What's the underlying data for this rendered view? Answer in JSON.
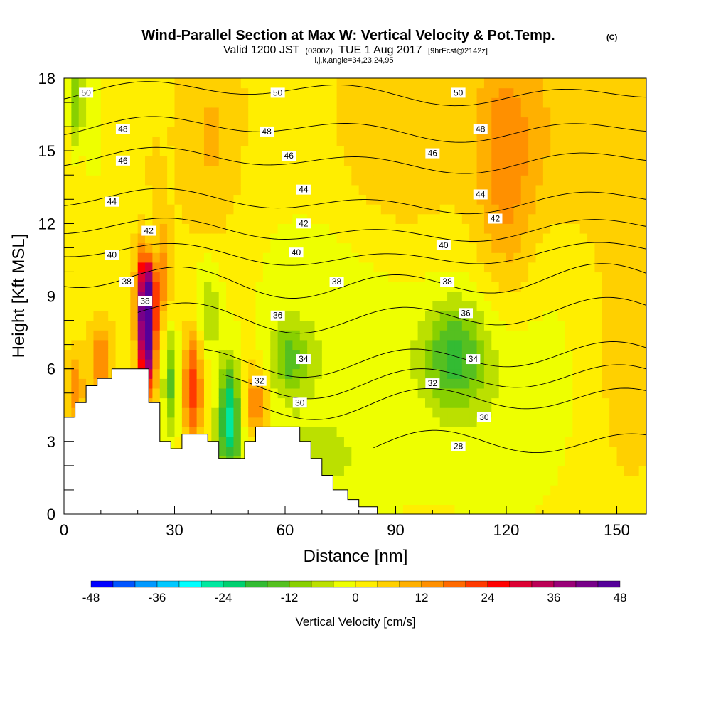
{
  "header": {
    "title": "Wind-Parallel Section at Max W: Vertical Velocity & Pot.Temp.",
    "title_unit": "(C)",
    "valid_prefix": "Valid 1200 JST",
    "valid_utc": "(0300Z)",
    "valid_date": "TUE 1 Aug 2017",
    "forecast": "[9hrFcst@2142z]",
    "params": "i,j,k,angle=34,23,24,95"
  },
  "chart_data": {
    "type": "heatmap",
    "xlabel": "Distance [nm]",
    "ylabel": "Height [Kft MSL]",
    "xlim": [
      0,
      158
    ],
    "ylim": [
      0,
      18
    ],
    "x_ticks": [
      "0",
      "30",
      "60",
      "90",
      "120",
      "150"
    ],
    "x_tick_values": [
      0,
      30,
      60,
      90,
      120,
      150
    ],
    "y_ticks": [
      "0",
      "3",
      "6",
      "9",
      "12",
      "15",
      "18"
    ],
    "y_tick_values": [
      0,
      3,
      6,
      9,
      12,
      15,
      18
    ],
    "terrain": [
      [
        0,
        4.0
      ],
      [
        3,
        4.0
      ],
      [
        3,
        4.6
      ],
      [
        6,
        4.6
      ],
      [
        6,
        5.3
      ],
      [
        9,
        5.3
      ],
      [
        9,
        5.6
      ],
      [
        13,
        5.6
      ],
      [
        13,
        6.0
      ],
      [
        23,
        6.0
      ],
      [
        23,
        4.6
      ],
      [
        26,
        4.6
      ],
      [
        26,
        3.0
      ],
      [
        29,
        3.0
      ],
      [
        29,
        2.7
      ],
      [
        32,
        2.7
      ],
      [
        32,
        3.3
      ],
      [
        39,
        3.3
      ],
      [
        39,
        3.0
      ],
      [
        42,
        3.0
      ],
      [
        42,
        2.3
      ],
      [
        49,
        2.3
      ],
      [
        49,
        3.0
      ],
      [
        52,
        3.0
      ],
      [
        52,
        3.6
      ],
      [
        64,
        3.6
      ],
      [
        64,
        3.0
      ],
      [
        67,
        3.0
      ],
      [
        67,
        2.3
      ],
      [
        70,
        2.3
      ],
      [
        70,
        1.6
      ],
      [
        73,
        1.6
      ],
      [
        73,
        1.0
      ],
      [
        77,
        1.0
      ],
      [
        77,
        0.6
      ],
      [
        80,
        0.6
      ],
      [
        80,
        0.3
      ],
      [
        85,
        0.3
      ],
      [
        85,
        0.0
      ],
      [
        158,
        0.0
      ]
    ],
    "colorbar": {
      "label": "Vertical Velocity [cm/s]",
      "tick_labels": [
        "-48",
        "-36",
        "-24",
        "-12",
        "0",
        "12",
        "24",
        "36",
        "48"
      ],
      "tick_values": [
        -48,
        -36,
        -24,
        -12,
        0,
        12,
        24,
        36,
        48
      ],
      "colors": [
        "#0000ff",
        "#0055ff",
        "#0099ff",
        "#00c8ff",
        "#00ffff",
        "#00e8a0",
        "#00d070",
        "#33bb33",
        "#55c020",
        "#88d000",
        "#bbe000",
        "#eeff00",
        "#ffee00",
        "#ffd000",
        "#ffb000",
        "#ff9000",
        "#ff6a00",
        "#ff3a00",
        "#ff0000",
        "#dd0033",
        "#bb0055",
        "#990077",
        "#770088",
        "#550099"
      ]
    },
    "theta_contours": [
      {
        "value": 28,
        "x_start": 84,
        "label_x": 107,
        "label_y": 2.8
      },
      {
        "value": 30,
        "x_start": 53,
        "label_x": 64,
        "label_y": 4.6
      },
      {
        "value": 32,
        "x_start": 43,
        "label_x": 53,
        "label_y": 5.5
      },
      {
        "value": 34,
        "x_start": 38,
        "label_x": 65,
        "label_y": 6.4
      },
      {
        "value": 36,
        "x_start": 20,
        "label_x": 58,
        "label_y": 8.2
      },
      {
        "value": 38,
        "x_start": 0,
        "label_x": 17,
        "label_y": 9.6
      },
      {
        "value": 40,
        "x_start": 0,
        "label_x": 13,
        "label_y": 10.7
      },
      {
        "value": 42,
        "x_start": 0,
        "label_x": 23,
        "label_y": 11.7
      },
      {
        "value": 44,
        "x_start": 0,
        "label_x": 13,
        "label_y": 12.9
      },
      {
        "value": 46,
        "x_start": 0,
        "label_x": 16,
        "label_y": 14.6
      },
      {
        "value": 48,
        "x_start": 0,
        "label_x": 16,
        "label_y": 15.9
      },
      {
        "value": 50,
        "x_start": 0,
        "label_x": 6,
        "label_y": 17.4
      }
    ],
    "extra_labels": [
      {
        "text": "36",
        "x": 109,
        "y": 8.3
      },
      {
        "text": "34",
        "x": 111,
        "y": 6.4
      },
      {
        "text": "32",
        "x": 100,
        "y": 5.4
      },
      {
        "text": "30",
        "x": 114,
        "y": 4.0
      },
      {
        "text": "38",
        "x": 74,
        "y": 9.6
      },
      {
        "text": "38",
        "x": 104,
        "y": 9.6
      },
      {
        "text": "38",
        "x": 22,
        "y": 8.8
      },
      {
        "text": "40",
        "x": 63,
        "y": 10.8
      },
      {
        "text": "40",
        "x": 103,
        "y": 11.1
      },
      {
        "text": "42",
        "x": 65,
        "y": 12.0
      },
      {
        "text": "42",
        "x": 117,
        "y": 12.2
      },
      {
        "text": "44",
        "x": 65,
        "y": 13.4
      },
      {
        "text": "44",
        "x": 113,
        "y": 13.2
      },
      {
        "text": "46",
        "x": 61,
        "y": 14.8
      },
      {
        "text": "46",
        "x": 100,
        "y": 14.9
      },
      {
        "text": "48",
        "x": 55,
        "y": 15.8
      },
      {
        "text": "48",
        "x": 113,
        "y": 15.9
      },
      {
        "text": "50",
        "x": 58,
        "y": 17.4
      },
      {
        "text": "50",
        "x": 107,
        "y": 17.4
      }
    ],
    "w_features": [
      {
        "x": 22.5,
        "y": 7.5,
        "sx": 1.6,
        "sy": 1.6,
        "w": 48
      },
      {
        "x": 22.5,
        "y": 9.5,
        "sx": 1.8,
        "sy": 1.2,
        "w": 24
      },
      {
        "x": 24,
        "y": 11.5,
        "sx": 1.3,
        "sy": 1.4,
        "w": -14
      },
      {
        "x": 24.5,
        "y": 12.5,
        "sx": 1.5,
        "sy": 1.4,
        "w": 10
      },
      {
        "x": 27,
        "y": 9.8,
        "sx": 1.5,
        "sy": 1.4,
        "w": 10
      },
      {
        "x": 3.5,
        "y": 17.0,
        "sx": 1.5,
        "sy": 1.5,
        "w": -14
      },
      {
        "x": 8,
        "y": 16.0,
        "sx": 1.5,
        "sy": 2.0,
        "w": -6
      },
      {
        "x": 35,
        "y": 5.2,
        "sx": 1.8,
        "sy": 1.6,
        "w": 22
      },
      {
        "x": 29,
        "y": 5.5,
        "sx": 1.6,
        "sy": 1.6,
        "w": -16
      },
      {
        "x": 39,
        "y": 8.5,
        "sx": 2.5,
        "sy": 1.5,
        "w": -10
      },
      {
        "x": 45,
        "y": 4.0,
        "sx": 2.2,
        "sy": 1.6,
        "w": -26
      },
      {
        "x": 52,
        "y": 4.5,
        "sx": 2.5,
        "sy": 1.2,
        "w": 16
      },
      {
        "x": 10,
        "y": 6.4,
        "sx": 2.2,
        "sy": 1.0,
        "w": 12
      },
      {
        "x": 3,
        "y": 5.2,
        "sx": 1.5,
        "sy": 0.8,
        "w": 12
      },
      {
        "x": 61,
        "y": 6.4,
        "sx": 4.0,
        "sy": 1.0,
        "w": -12
      },
      {
        "x": 72,
        "y": 7.0,
        "sx": 18.0,
        "sy": 6.0,
        "w": -6
      },
      {
        "x": 106,
        "y": 6.5,
        "sx": 6.0,
        "sy": 1.5,
        "w": -16
      },
      {
        "x": 120,
        "y": 5.5,
        "sx": 16.0,
        "sy": 5.0,
        "w": -6
      },
      {
        "x": 120,
        "y": 14.0,
        "sx": 6.0,
        "sy": 4.0,
        "w": 12
      },
      {
        "x": 140,
        "y": 16.0,
        "sx": 12.0,
        "sy": 3.0,
        "w": 5
      },
      {
        "x": 90,
        "y": 15.0,
        "sx": 14.0,
        "sy": 3.0,
        "w": 6
      },
      {
        "x": 40,
        "y": 15.5,
        "sx": 6.0,
        "sy": 3.0,
        "w": 6
      },
      {
        "x": 60,
        "y": 2.0,
        "sx": 20.0,
        "sy": 1.5,
        "w": -4
      },
      {
        "x": 152,
        "y": 7.0,
        "sx": 6.0,
        "sy": 4.0,
        "w": 4
      }
    ]
  }
}
